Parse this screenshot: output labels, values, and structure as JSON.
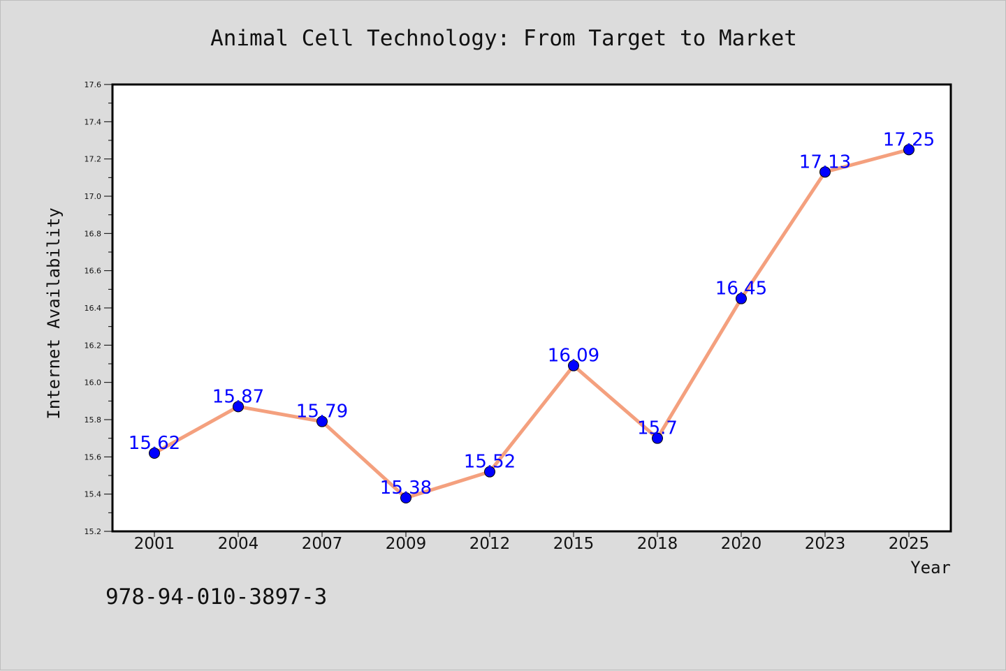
{
  "chart_data": {
    "type": "line",
    "title": "Animal Cell Technology: From Target to Market",
    "xlabel": "Year",
    "ylabel": "Internet Availability",
    "categories": [
      "2001",
      "2004",
      "2007",
      "2009",
      "2012",
      "2015",
      "2018",
      "2020",
      "2023",
      "2025"
    ],
    "values": [
      15.62,
      15.87,
      15.79,
      15.38,
      15.52,
      16.09,
      15.7,
      16.45,
      17.13,
      17.25
    ],
    "value_labels": [
      "15.62",
      "15.87",
      "15.79",
      "15.38",
      "15.52",
      "16.09",
      "15.7",
      "16.45",
      "17.13",
      "17.25"
    ],
    "ylim": [
      15.2,
      17.6
    ],
    "yticks": [
      "15.2",
      "15.4",
      "15.6",
      "15.8",
      "16.0",
      "16.2",
      "16.4",
      "16.6",
      "16.8",
      "17.0",
      "17.2",
      "17.4",
      "17.6"
    ],
    "grid": false,
    "legend": "none",
    "colors": {
      "line": "#f4a07e",
      "marker": "#0000ff",
      "label": "#0000ff",
      "background": "#dcdcdc",
      "plot_area": "#ffffff"
    }
  },
  "footer": {
    "isbn": "978-94-010-3897-3"
  }
}
